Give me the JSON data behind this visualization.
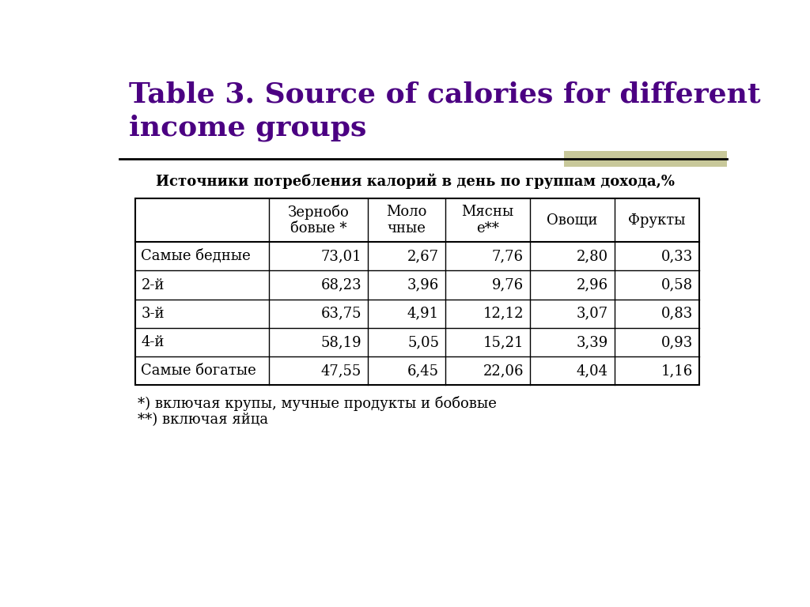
{
  "title_line1": "Table 3. Source of calories for different",
  "title_line2": "income groups",
  "subtitle": "Источники потребления калорий в день по группам дохода,%",
  "col_headers": [
    "",
    "Зернобо\nбовые *",
    "Моло\nчные",
    "Мясны\nе**",
    "Овощи",
    "Фрукты"
  ],
  "rows": [
    [
      "Самые бедные",
      "73,01",
      "2,67",
      "7,76",
      "2,80",
      "0,33"
    ],
    [
      "2-й",
      "68,23",
      "3,96",
      "9,76",
      "2,96",
      "0,58"
    ],
    [
      "3-й",
      "63,75",
      "4,91",
      "12,12",
      "3,07",
      "0,83"
    ],
    [
      "4-й",
      "58,19",
      "5,05",
      "15,21",
      "3,39",
      "0,93"
    ],
    [
      "Самые богатые",
      "47,55",
      "6,45",
      "22,06",
      "4,04",
      "1,16"
    ]
  ],
  "footnote1": "*) включая крупы, мучные продукты и бобовые",
  "footnote2": "**) включая яйца",
  "title_color": "#4b0082",
  "text_color": "#000000",
  "bg_color": "#ffffff",
  "line_color": "#000000",
  "decoration_color": "#c8c89a",
  "title_fontsize": 26,
  "subtitle_fontsize": 13,
  "table_fontsize": 13,
  "footnote_fontsize": 13
}
